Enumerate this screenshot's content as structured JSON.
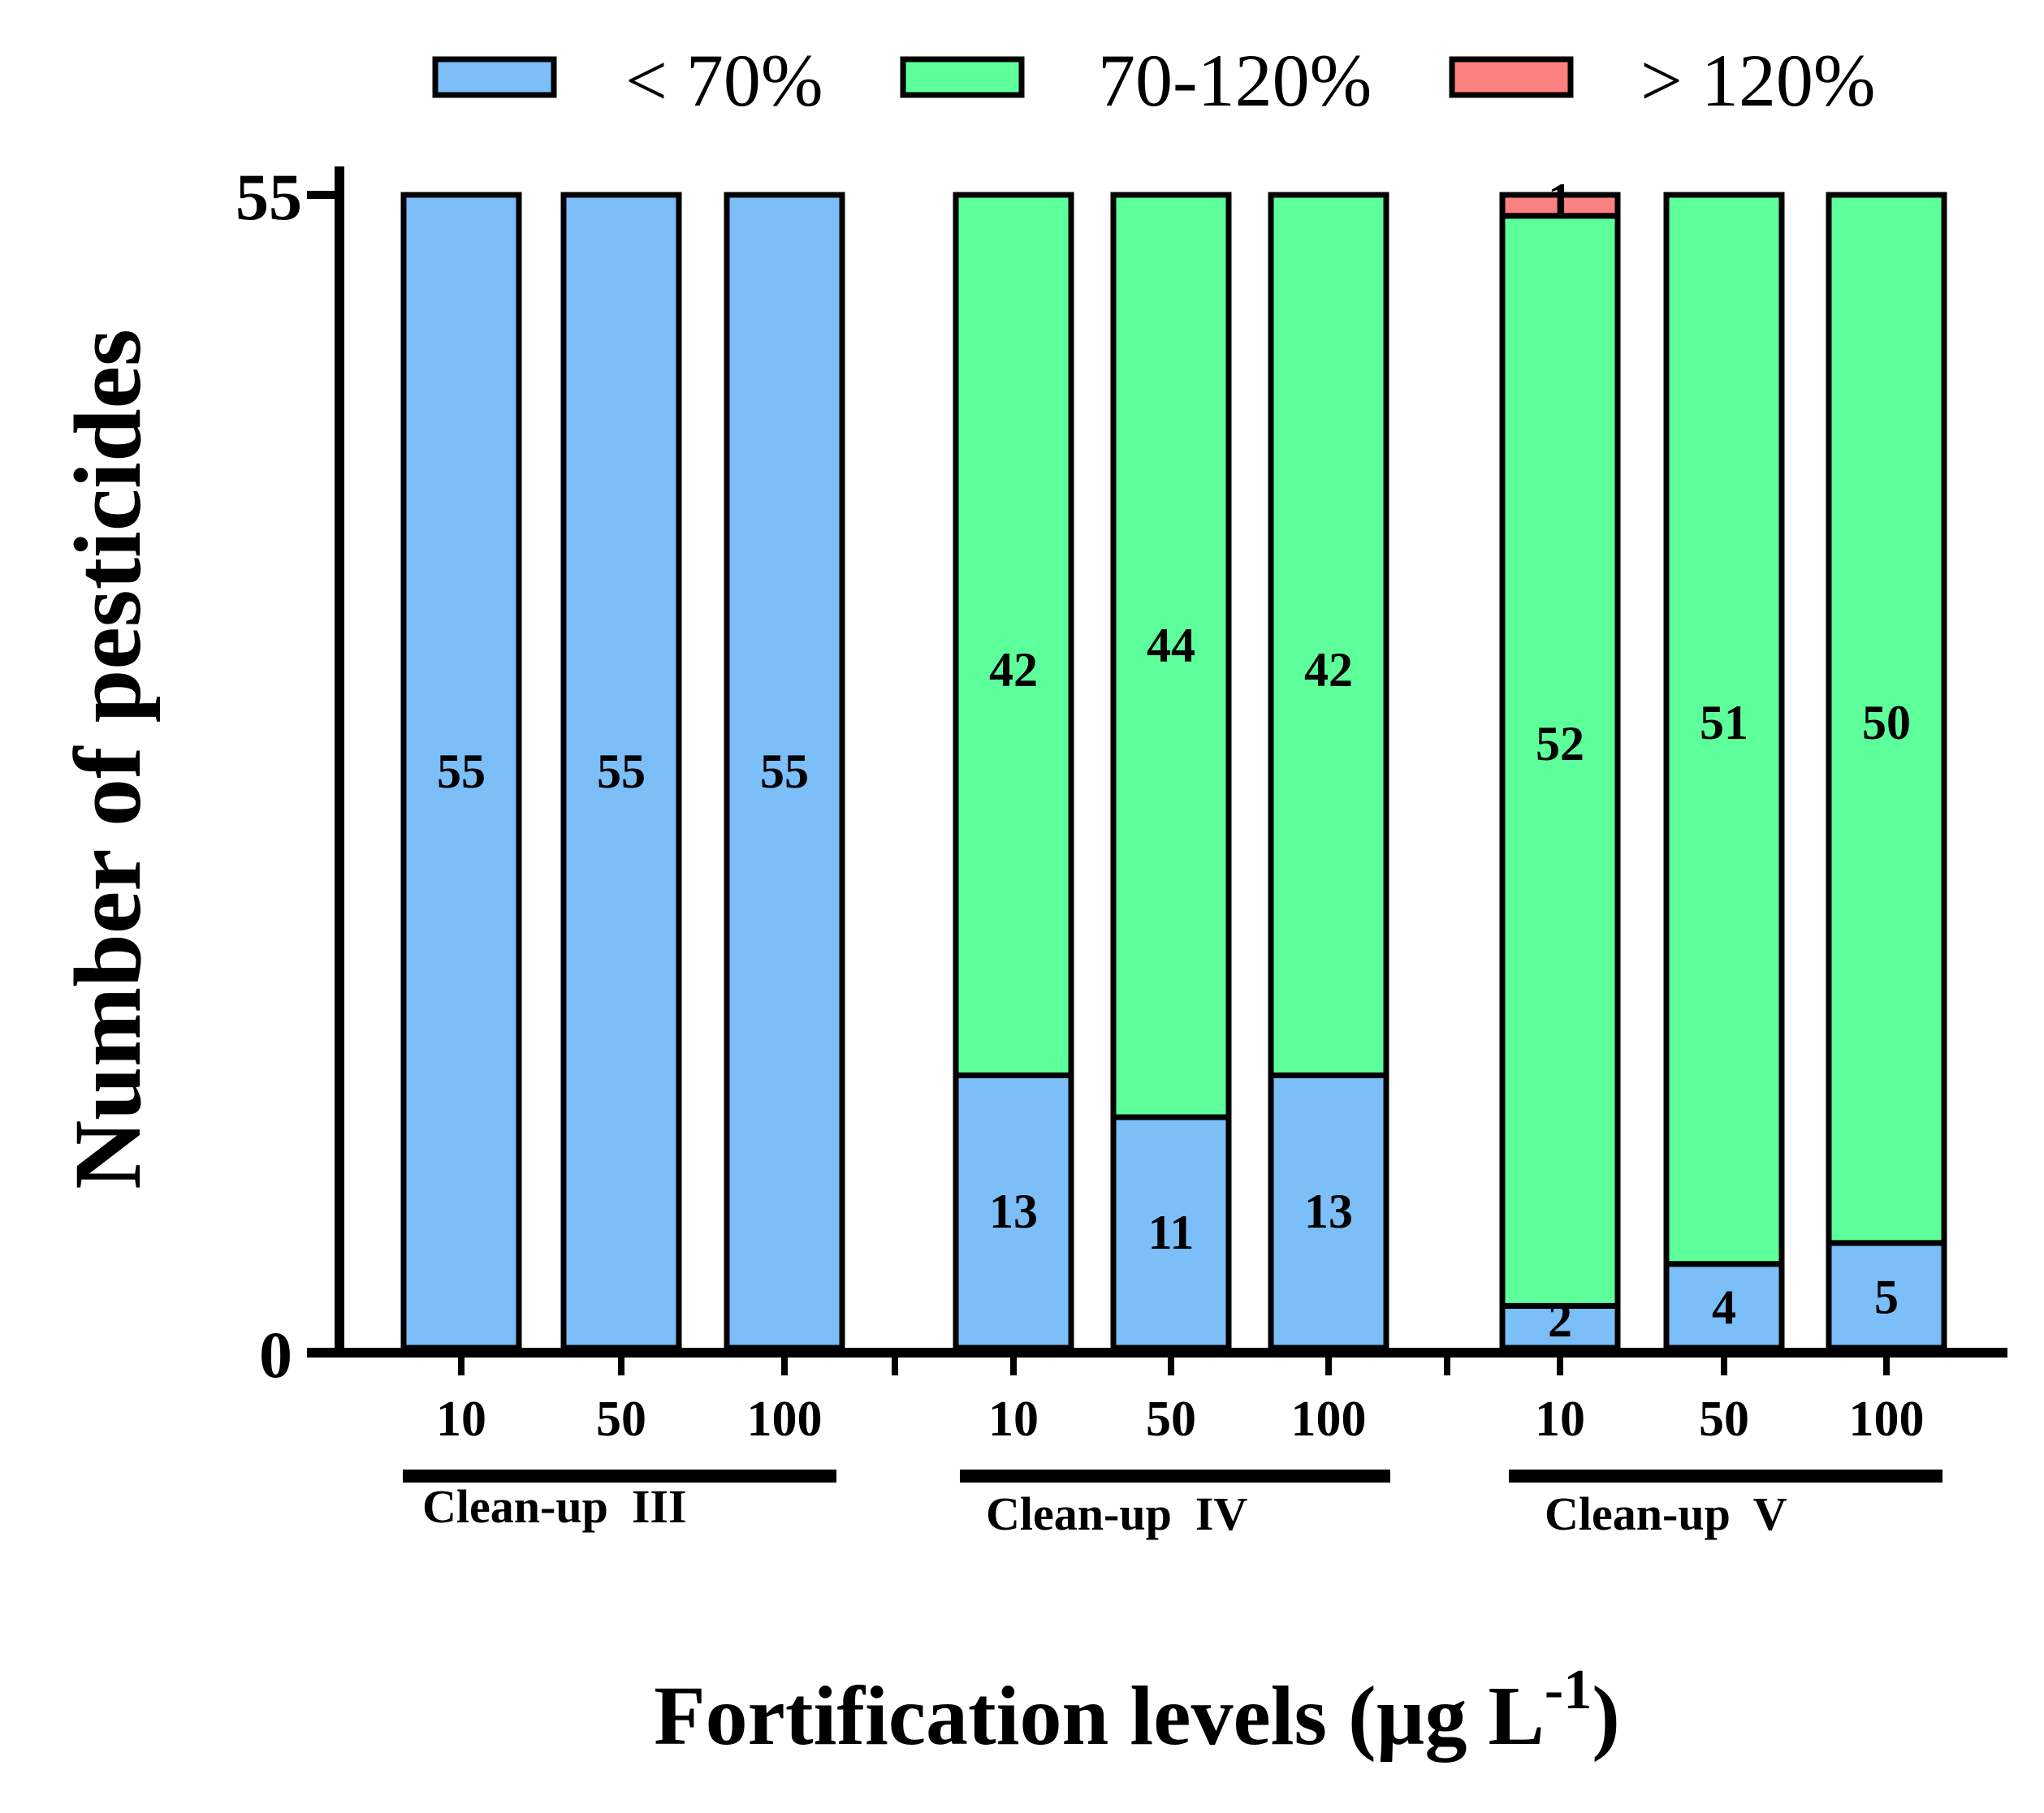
{
  "chart_data": {
    "type": "bar",
    "stacked": true,
    "ylabel": "Number of pesticides",
    "xlabel_main": "Fortification levels (µg L",
    "xlabel_sup": "-1",
    "xlabel_close": ")",
    "ylim": [
      0,
      55
    ],
    "yticks": [
      "0",
      "55"
    ],
    "groups": [
      {
        "name": "Clean-up  III",
        "levels": [
          "10",
          "50",
          "100"
        ]
      },
      {
        "name": "Clean-up  IV",
        "levels": [
          "10",
          "50",
          "100"
        ]
      },
      {
        "name": "Clean-up  V",
        "levels": [
          "10",
          "50",
          "100"
        ]
      }
    ],
    "series": [
      {
        "name": "< 70%",
        "color": "#7bbef8",
        "values": [
          55,
          55,
          55,
          13,
          11,
          13,
          2,
          4,
          5
        ]
      },
      {
        "name": "70-120%",
        "color": "#5dff9b",
        "values": [
          0,
          0,
          0,
          42,
          44,
          42,
          52,
          51,
          50
        ]
      },
      {
        "name": "> 120%",
        "color": "#fb8080",
        "values": [
          0,
          0,
          0,
          0,
          0,
          0,
          1,
          0,
          0
        ]
      }
    ],
    "bar_labels": [
      [
        "55",
        "",
        ""
      ],
      [
        "55",
        "",
        ""
      ],
      [
        "55",
        "",
        ""
      ],
      [
        "13",
        "42",
        ""
      ],
      [
        "11",
        "44",
        ""
      ],
      [
        "13",
        "42",
        ""
      ],
      [
        "2",
        "52",
        "1"
      ],
      [
        "4",
        "51",
        ""
      ],
      [
        "5",
        "50",
        ""
      ]
    ],
    "legend_position": "top"
  }
}
